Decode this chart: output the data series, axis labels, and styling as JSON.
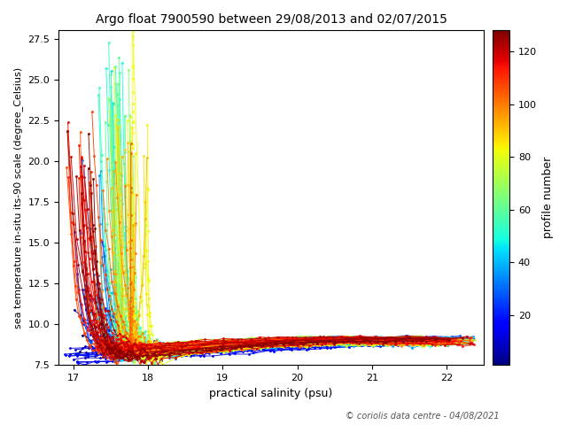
{
  "title": "Argo float 7900590 between 29/08/2013 and 02/07/2015",
  "xlabel": "practical salinity (psu)",
  "ylabel": "sea temperature in-situ its-90 scale (degree_Celsius)",
  "colorbar_label": "profile number",
  "copyright": "© coriolis data centre - 04/08/2021",
  "xlim": [
    16.8,
    22.5
  ],
  "ylim": [
    7.5,
    28.0
  ],
  "n_profiles": 128,
  "cmap": "jet",
  "vmin": 1,
  "vmax": 128,
  "colorbar_ticks": [
    20,
    40,
    60,
    80,
    100,
    120
  ],
  "seed": 7
}
